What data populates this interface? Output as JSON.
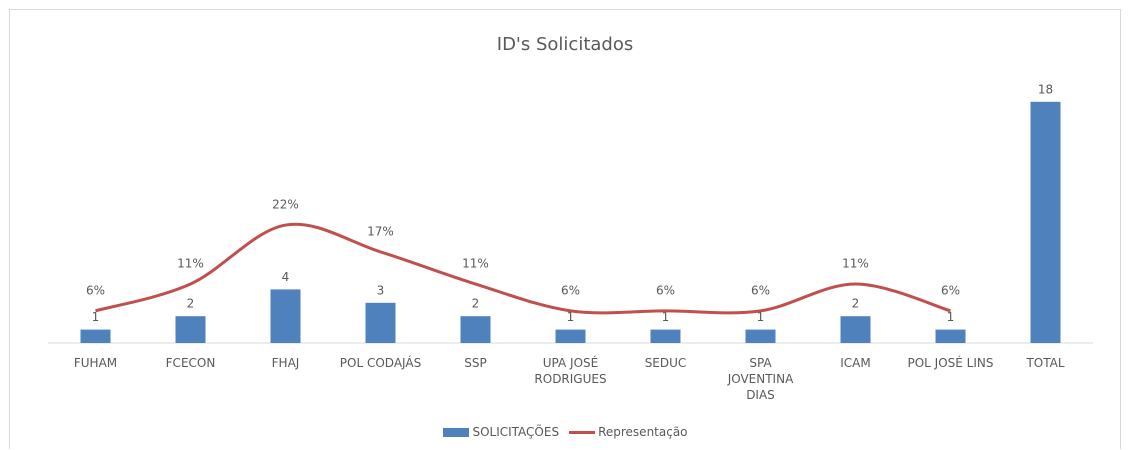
{
  "chart_data": {
    "type": "bar",
    "title": "ID's Solicitados",
    "categories": [
      "FUHAM",
      "FCECON",
      "FHAJ",
      "POL CODAJÁS",
      "SSP",
      "UPA JOSÉ RODRIGUES",
      "SEDUC",
      "SPA JOVENTINA DIAS",
      "ICAM",
      "POL JOSÉ LINS",
      "TOTAL"
    ],
    "series": [
      {
        "name": "SOLICITAÇÕES",
        "type": "bar",
        "color": "#4f81bd",
        "values": [
          1,
          2,
          4,
          3,
          2,
          1,
          1,
          1,
          2,
          1,
          18
        ]
      },
      {
        "name": "Representação",
        "type": "line",
        "axis": "y2",
        "color": "#c0504d",
        "smooth": true,
        "values": [
          6,
          11,
          22,
          17,
          11,
          6,
          6,
          6,
          11,
          6,
          null
        ],
        "value_labels": [
          "6%",
          "11%",
          "22%",
          "17%",
          "11%",
          "6%",
          "6%",
          "6%",
          "11%",
          "6%",
          null
        ]
      }
    ],
    "ylim": [
      0,
      20
    ],
    "y2lim": [
      0,
      50
    ],
    "legend": "bottom"
  }
}
